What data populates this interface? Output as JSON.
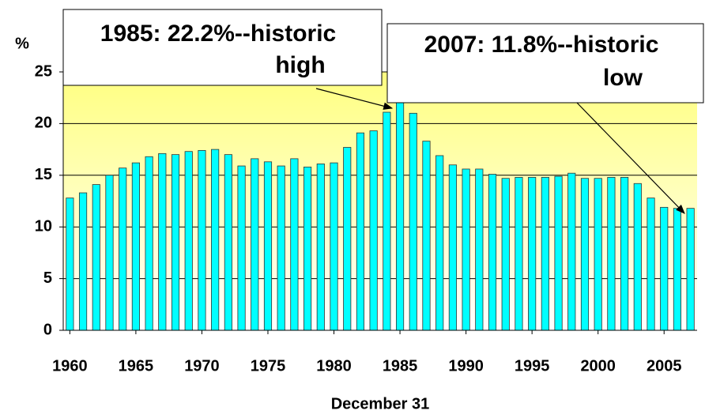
{
  "chart_data": {
    "type": "bar",
    "y_label": "%",
    "x_label": "December 31",
    "x": [
      1960,
      1961,
      1962,
      1963,
      1964,
      1965,
      1966,
      1967,
      1968,
      1969,
      1970,
      1971,
      1972,
      1973,
      1974,
      1975,
      1976,
      1977,
      1978,
      1979,
      1980,
      1981,
      1982,
      1983,
      1984,
      1985,
      1986,
      1987,
      1988,
      1989,
      1990,
      1991,
      1992,
      1993,
      1994,
      1995,
      1996,
      1997,
      1998,
      1999,
      2000,
      2001,
      2002,
      2003,
      2004,
      2005,
      2006,
      2007
    ],
    "values": [
      12.8,
      13.3,
      14.1,
      15.0,
      15.7,
      16.2,
      16.8,
      17.1,
      17.0,
      17.3,
      17.4,
      17.5,
      17.0,
      15.9,
      16.6,
      16.3,
      15.9,
      16.6,
      15.8,
      16.1,
      16.2,
      17.7,
      19.1,
      19.3,
      21.1,
      22.2,
      21.0,
      18.3,
      16.9,
      16.0,
      15.6,
      15.6,
      15.1,
      14.7,
      14.8,
      14.8,
      14.8,
      14.9,
      15.2,
      14.7,
      14.7,
      14.8,
      14.8,
      14.2,
      12.8,
      11.9,
      11.8,
      11.8
    ],
    "color": "#00ffff",
    "xlim": [
      1959.5,
      2007.5
    ],
    "xticks": [
      1960,
      1965,
      1970,
      1975,
      1980,
      1985,
      1990,
      1995,
      2000,
      2005
    ],
    "ylim": [
      0,
      25
    ],
    "yticks": [
      0,
      5,
      10,
      15,
      20,
      25
    ],
    "grid": true,
    "annotations": [
      {
        "lines": [
          "1985: 22.2%--historic",
          "high"
        ]
      },
      {
        "lines": [
          "2007: 11.8%--historic",
          "low"
        ]
      }
    ]
  }
}
